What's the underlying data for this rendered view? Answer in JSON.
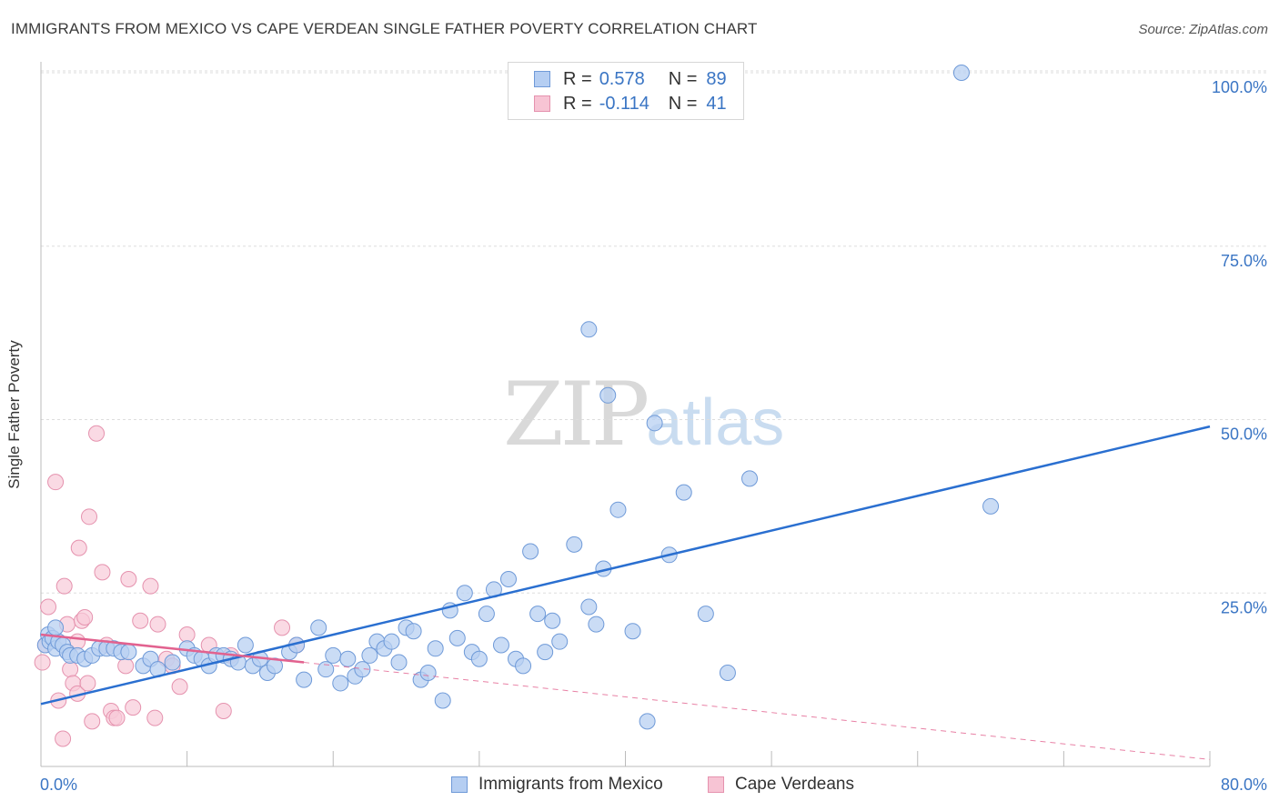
{
  "header": {
    "title": "IMMIGRANTS FROM MEXICO VS CAPE VERDEAN SINGLE FATHER POVERTY CORRELATION CHART",
    "source": "Source: ZipAtlas.com"
  },
  "watermark": {
    "zip": "ZIP",
    "atlas": "atlas"
  },
  "legend": {
    "rows": [
      {
        "r_label": "R = ",
        "r_value": "0.578",
        "n_label": "N = ",
        "n_value": "89",
        "fill": "#b5cef2",
        "stroke": "#6f9ad8"
      },
      {
        "r_label": "R = ",
        "r_value": "-0.114",
        "n_label": "N = ",
        "n_value": "41",
        "fill": "#f7c4d4",
        "stroke": "#e592ae"
      }
    ]
  },
  "bottom_legend": {
    "items": [
      {
        "label": "Immigrants from Mexico",
        "fill": "#b5cef2",
        "stroke": "#6f9ad8"
      },
      {
        "label": "Cape Verdeans",
        "fill": "#f7c4d4",
        "stroke": "#e592ae"
      }
    ]
  },
  "colors": {
    "blue_point_fill": "#b8d0f2",
    "blue_point_stroke": "#6f9ad8",
    "blue_line": "#2a6fd0",
    "pink_point_fill": "#f8cad8",
    "pink_point_stroke": "#e592ae",
    "pink_line": "#e2628f",
    "grid": "#dddddd",
    "tick_label": "#3a75c4"
  },
  "chart_data": {
    "type": "scatter",
    "title": "IMMIGRANTS FROM MEXICO VS CAPE VERDEAN SINGLE FATHER POVERTY CORRELATION CHART",
    "xlabel": "",
    "ylabel": "Single Father Poverty",
    "xlim": [
      0,
      80
    ],
    "ylim": [
      0,
      100
    ],
    "x_tick_labels": [
      "0.0%",
      "80.0%"
    ],
    "y_ticks": [
      25,
      50,
      75,
      100
    ],
    "y_tick_labels": [
      "25.0%",
      "50.0%",
      "75.0%",
      "100.0%"
    ],
    "grid": true,
    "series": [
      {
        "name": "Immigrants from Mexico",
        "r": 0.578,
        "n": 89,
        "trend": {
          "x": [
            0,
            80
          ],
          "y": [
            9.0,
            49.0
          ],
          "style": "solid"
        },
        "points": [
          [
            0.3,
            17.5
          ],
          [
            0.5,
            19.0
          ],
          [
            0.6,
            18.0
          ],
          [
            0.8,
            18.5
          ],
          [
            1.0,
            17.0
          ],
          [
            1.2,
            18.0
          ],
          [
            1.5,
            17.5
          ],
          [
            1.8,
            16.5
          ],
          [
            2.0,
            16.0
          ],
          [
            2.5,
            16.0
          ],
          [
            3.0,
            15.5
          ],
          [
            3.5,
            16.0
          ],
          [
            4.0,
            17.0
          ],
          [
            4.5,
            17.0
          ],
          [
            5.0,
            17.0
          ],
          [
            5.5,
            16.5
          ],
          [
            6.0,
            16.5
          ],
          [
            7.0,
            14.5
          ],
          [
            7.5,
            15.5
          ],
          [
            8.0,
            14.0
          ],
          [
            9.0,
            15.0
          ],
          [
            10.0,
            17.0
          ],
          [
            10.5,
            16.0
          ],
          [
            11.0,
            15.5
          ],
          [
            11.5,
            14.5
          ],
          [
            12.0,
            16.0
          ],
          [
            12.5,
            16.0
          ],
          [
            13.0,
            15.5
          ],
          [
            13.5,
            15.0
          ],
          [
            14.0,
            17.5
          ],
          [
            14.5,
            14.5
          ],
          [
            15.0,
            15.5
          ],
          [
            15.5,
            13.5
          ],
          [
            16.0,
            14.5
          ],
          [
            17.0,
            16.5
          ],
          [
            17.5,
            17.5
          ],
          [
            18.0,
            12.5
          ],
          [
            19.0,
            20.0
          ],
          [
            19.5,
            14.0
          ],
          [
            20.0,
            16.0
          ],
          [
            20.5,
            12.0
          ],
          [
            21.0,
            15.5
          ],
          [
            21.5,
            13.0
          ],
          [
            22.0,
            14.0
          ],
          [
            22.5,
            16.0
          ],
          [
            23.0,
            18.0
          ],
          [
            23.5,
            17.0
          ],
          [
            24.0,
            18.0
          ],
          [
            24.5,
            15.0
          ],
          [
            25.0,
            20.0
          ],
          [
            25.5,
            19.5
          ],
          [
            26.0,
            12.5
          ],
          [
            26.5,
            13.5
          ],
          [
            27.0,
            17.0
          ],
          [
            27.5,
            9.5
          ],
          [
            28.0,
            22.5
          ],
          [
            28.5,
            18.5
          ],
          [
            29.0,
            25.0
          ],
          [
            29.5,
            16.5
          ],
          [
            30.0,
            15.5
          ],
          [
            30.5,
            22.0
          ],
          [
            31.0,
            25.5
          ],
          [
            31.5,
            17.5
          ],
          [
            32.0,
            27.0
          ],
          [
            32.5,
            15.5
          ],
          [
            33.0,
            14.5
          ],
          [
            33.5,
            31.0
          ],
          [
            34.0,
            22.0
          ],
          [
            34.5,
            16.5
          ],
          [
            35.0,
            21.0
          ],
          [
            35.5,
            18.0
          ],
          [
            36.5,
            32.0
          ],
          [
            37.5,
            23.0
          ],
          [
            37.5,
            63.0
          ],
          [
            38.0,
            20.5
          ],
          [
            38.5,
            28.5
          ],
          [
            38.8,
            53.5
          ],
          [
            39.5,
            37.0
          ],
          [
            40.5,
            19.5
          ],
          [
            41.5,
            6.5
          ],
          [
            42.0,
            49.5
          ],
          [
            43.0,
            30.5
          ],
          [
            44.0,
            39.5
          ],
          [
            45.5,
            22.0
          ],
          [
            47.0,
            13.5
          ],
          [
            48.5,
            41.5
          ],
          [
            63.0,
            100.0
          ],
          [
            65.0,
            37.5
          ],
          [
            1.0,
            20.0
          ]
        ]
      },
      {
        "name": "Cape Verdeans",
        "r": -0.114,
        "n": 41,
        "trend": {
          "x": [
            0,
            18
          ],
          "y": [
            19.0,
            15.0
          ],
          "style": "solid",
          "extended": {
            "x": [
              18,
              80
            ],
            "y": [
              15.0,
              1.0
            ],
            "style": "dashed"
          }
        },
        "points": [
          [
            0.1,
            15.0
          ],
          [
            0.3,
            17.5
          ],
          [
            0.5,
            23.0
          ],
          [
            0.8,
            18.5
          ],
          [
            1.0,
            41.0
          ],
          [
            1.2,
            9.5
          ],
          [
            1.5,
            4.0
          ],
          [
            1.6,
            26.0
          ],
          [
            1.8,
            20.5
          ],
          [
            2.0,
            14.0
          ],
          [
            2.2,
            12.0
          ],
          [
            2.5,
            18.0
          ],
          [
            2.5,
            10.5
          ],
          [
            2.6,
            31.5
          ],
          [
            2.8,
            21.0
          ],
          [
            3.0,
            21.5
          ],
          [
            3.2,
            12.0
          ],
          [
            3.3,
            36.0
          ],
          [
            3.5,
            6.5
          ],
          [
            3.8,
            48.0
          ],
          [
            4.2,
            28.0
          ],
          [
            4.5,
            17.5
          ],
          [
            4.8,
            8.0
          ],
          [
            5.0,
            7.0
          ],
          [
            5.2,
            7.0
          ],
          [
            5.8,
            14.5
          ],
          [
            6.0,
            27.0
          ],
          [
            6.3,
            8.5
          ],
          [
            6.8,
            21.0
          ],
          [
            7.5,
            26.0
          ],
          [
            7.8,
            7.0
          ],
          [
            8.0,
            20.5
          ],
          [
            8.6,
            15.5
          ],
          [
            9.0,
            14.5
          ],
          [
            9.5,
            11.5
          ],
          [
            10.0,
            19.0
          ],
          [
            11.5,
            17.5
          ],
          [
            12.5,
            8.0
          ],
          [
            13.0,
            16.0
          ],
          [
            16.5,
            20.0
          ],
          [
            17.5,
            17.5
          ]
        ]
      }
    ]
  }
}
